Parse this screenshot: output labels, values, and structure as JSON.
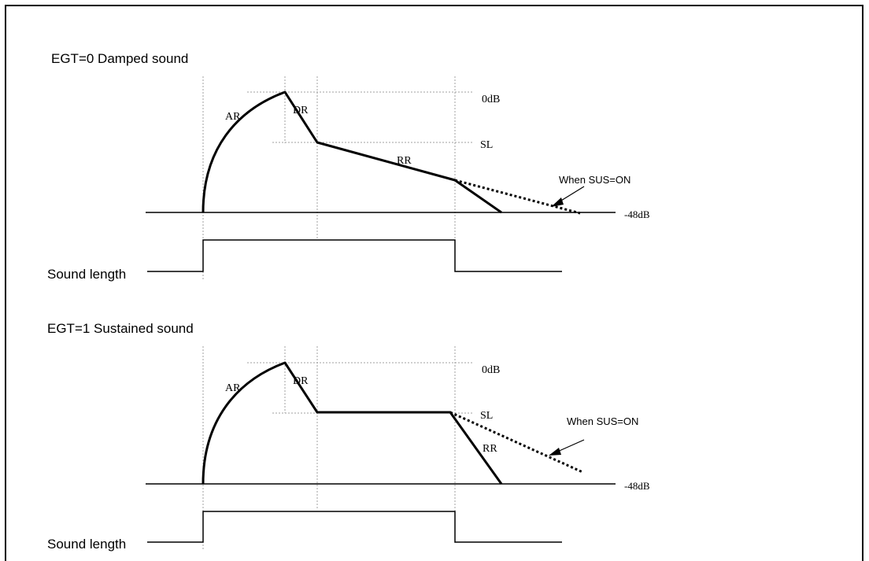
{
  "diagrams": [
    {
      "title": "EGT=0 Damped sound",
      "labels": {
        "ar": "AR",
        "dr": "DR",
        "rr": "RR",
        "db0": "0dB",
        "sl": "SL",
        "db48": "-48dB",
        "sus": "When SUS=ON"
      },
      "gate_label": "Sound length"
    },
    {
      "title": "EGT=1 Sustained sound",
      "labels": {
        "ar": "AR",
        "dr": "DR",
        "rr": "RR",
        "db0": "0dB",
        "sl": "SL",
        "db48": "-48dB",
        "sus": "When SUS=ON"
      },
      "gate_label": "Sound length"
    }
  ],
  "colors": {
    "line": "#000000",
    "guide": "#a0a0a0"
  }
}
